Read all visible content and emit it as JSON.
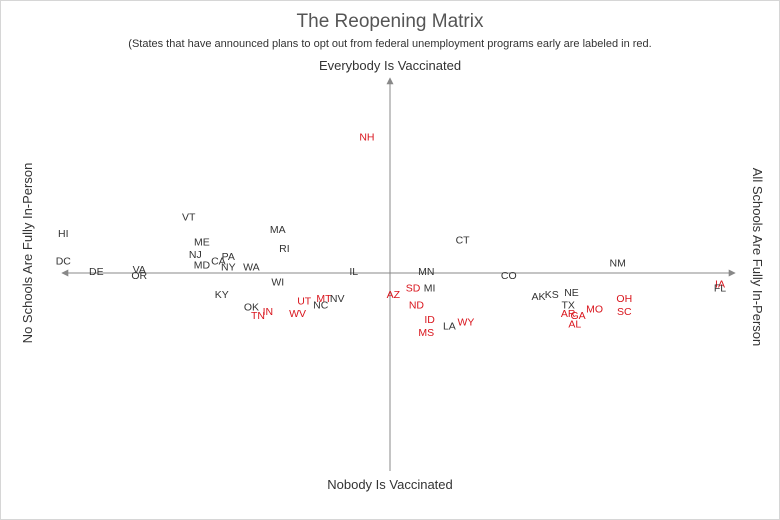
{
  "colors": {
    "opt_out": "#d9141c",
    "default": "#333333",
    "axis": "#888888",
    "title": "#555555"
  },
  "chart_data": {
    "type": "scatter",
    "title": "The Reopening Matrix",
    "subtitle": "(States that have announced plans to opt out from federal unemployment programs early are labeled in red.",
    "axis_labels": {
      "top": "Everybody Is Vaccinated",
      "bottom": "Nobody Is Vaccinated",
      "left": "No Schools Are Fully In-Person",
      "right": "All Schools Are Fully In-Person"
    },
    "grid": false,
    "points": [
      {
        "label": "NH",
        "x": -0.07,
        "y": 0.65,
        "opt_out": true
      },
      {
        "label": "VT",
        "x": -0.61,
        "y": 0.27,
        "opt_out": false
      },
      {
        "label": "HI",
        "x": -0.99,
        "y": 0.19,
        "opt_out": false
      },
      {
        "label": "MA",
        "x": -0.34,
        "y": 0.21,
        "opt_out": false
      },
      {
        "label": "ME",
        "x": -0.57,
        "y": 0.15,
        "opt_out": false
      },
      {
        "label": "RI",
        "x": -0.32,
        "y": 0.12,
        "opt_out": false
      },
      {
        "label": "NJ",
        "x": -0.59,
        "y": 0.09,
        "opt_out": false
      },
      {
        "label": "CT",
        "x": 0.22,
        "y": 0.16,
        "opt_out": false
      },
      {
        "label": "PA",
        "x": -0.49,
        "y": 0.08,
        "opt_out": false
      },
      {
        "label": "CA",
        "x": -0.52,
        "y": 0.06,
        "opt_out": false
      },
      {
        "label": "DC",
        "x": -0.99,
        "y": 0.06,
        "opt_out": false
      },
      {
        "label": "MD",
        "x": -0.57,
        "y": 0.04,
        "opt_out": false
      },
      {
        "label": "NY",
        "x": -0.49,
        "y": 0.03,
        "opt_out": false
      },
      {
        "label": "WA",
        "x": -0.42,
        "y": 0.03,
        "opt_out": false
      },
      {
        "label": "VA",
        "x": -0.76,
        "y": 0.02,
        "opt_out": false
      },
      {
        "label": "DE",
        "x": -0.89,
        "y": 0.01,
        "opt_out": false
      },
      {
        "label": "IL",
        "x": -0.11,
        "y": 0.01,
        "opt_out": false
      },
      {
        "label": "MN",
        "x": 0.11,
        "y": 0.01,
        "opt_out": false
      },
      {
        "label": "NM",
        "x": 0.69,
        "y": 0.05,
        "opt_out": false
      },
      {
        "label": "OR",
        "x": -0.76,
        "y": -0.01,
        "opt_out": false
      },
      {
        "label": "CO",
        "x": 0.36,
        "y": -0.01,
        "opt_out": false
      },
      {
        "label": "WI",
        "x": -0.34,
        "y": -0.04,
        "opt_out": false
      },
      {
        "label": "IA",
        "x": 1.0,
        "y": -0.05,
        "opt_out": true
      },
      {
        "label": "FL",
        "x": 1.0,
        "y": -0.07,
        "opt_out": false
      },
      {
        "label": "SD",
        "x": 0.07,
        "y": -0.07,
        "opt_out": true
      },
      {
        "label": "MI",
        "x": 0.12,
        "y": -0.07,
        "opt_out": false
      },
      {
        "label": "AZ",
        "x": 0.01,
        "y": -0.1,
        "opt_out": true
      },
      {
        "label": "KY",
        "x": -0.51,
        "y": -0.1,
        "opt_out": false
      },
      {
        "label": "NE",
        "x": 0.55,
        "y": -0.09,
        "opt_out": false
      },
      {
        "label": "KS",
        "x": 0.49,
        "y": -0.1,
        "opt_out": false
      },
      {
        "label": "AK",
        "x": 0.45,
        "y": -0.11,
        "opt_out": false
      },
      {
        "label": "OH",
        "x": 0.71,
        "y": -0.12,
        "opt_out": true
      },
      {
        "label": "MT",
        "x": -0.2,
        "y": -0.12,
        "opt_out": true
      },
      {
        "label": "NV",
        "x": -0.16,
        "y": -0.12,
        "opt_out": false
      },
      {
        "label": "UT",
        "x": -0.26,
        "y": -0.13,
        "opt_out": true
      },
      {
        "label": "ND",
        "x": 0.08,
        "y": -0.15,
        "opt_out": true
      },
      {
        "label": "NC",
        "x": -0.21,
        "y": -0.15,
        "opt_out": false
      },
      {
        "label": "TX",
        "x": 0.54,
        "y": -0.15,
        "opt_out": false
      },
      {
        "label": "OK",
        "x": -0.42,
        "y": -0.16,
        "opt_out": false
      },
      {
        "label": "MO",
        "x": 0.62,
        "y": -0.17,
        "opt_out": true
      },
      {
        "label": "IN",
        "x": -0.37,
        "y": -0.18,
        "opt_out": true
      },
      {
        "label": "SC",
        "x": 0.71,
        "y": -0.18,
        "opt_out": true
      },
      {
        "label": "WV",
        "x": -0.28,
        "y": -0.19,
        "opt_out": true
      },
      {
        "label": "AR",
        "x": 0.54,
        "y": -0.19,
        "opt_out": true
      },
      {
        "label": "GA",
        "x": 0.57,
        "y": -0.2,
        "opt_out": true
      },
      {
        "label": "TN",
        "x": -0.4,
        "y": -0.2,
        "opt_out": true
      },
      {
        "label": "WY",
        "x": 0.23,
        "y": -0.23,
        "opt_out": true
      },
      {
        "label": "ID",
        "x": 0.12,
        "y": -0.22,
        "opt_out": true
      },
      {
        "label": "AL",
        "x": 0.56,
        "y": -0.24,
        "opt_out": true
      },
      {
        "label": "LA",
        "x": 0.18,
        "y": -0.25,
        "opt_out": false
      },
      {
        "label": "MS",
        "x": 0.11,
        "y": -0.28,
        "opt_out": true
      }
    ]
  }
}
